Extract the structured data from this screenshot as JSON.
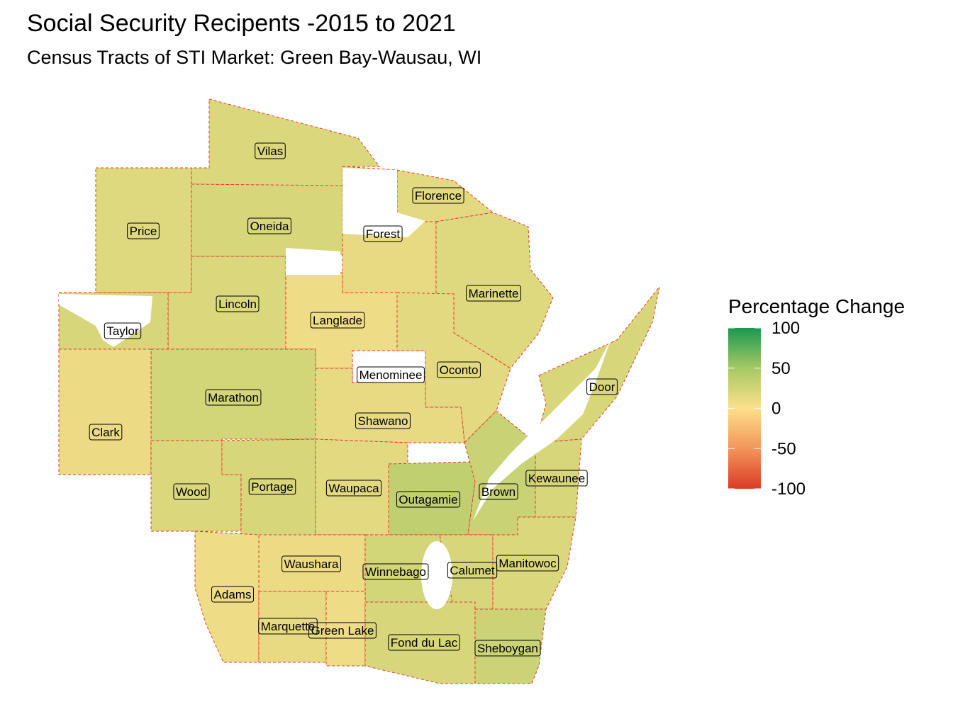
{
  "title": "Social Security Recipents -2015 to 2021",
  "subtitle": "Census Tracts of STI Market: Green Bay-Wausau, WI",
  "legend": {
    "title": "Percentage Change",
    "lim": [
      -100,
      100
    ],
    "ticks": [
      100,
      50,
      0,
      -50,
      -100
    ],
    "colors": [
      "#1a9850",
      "#a6c964",
      "#fde08c",
      "#f2955a",
      "#dc3b26"
    ]
  },
  "counties": [
    {
      "name": "Vilas",
      "value": 20
    },
    {
      "name": "Florence",
      "value": 15
    },
    {
      "name": "Price",
      "value": 18
    },
    {
      "name": "Oneida",
      "value": 22
    },
    {
      "name": "Forest",
      "value": 12
    },
    {
      "name": "Marinette",
      "value": 18
    },
    {
      "name": "Lincoln",
      "value": 20
    },
    {
      "name": "Langlade",
      "value": 8
    },
    {
      "name": "Taylor",
      "value": 22
    },
    {
      "name": "Menominee",
      "value": null
    },
    {
      "name": "Oconto",
      "value": 15
    },
    {
      "name": "Door",
      "value": 22
    },
    {
      "name": "Marathon",
      "value": 25
    },
    {
      "name": "Shawano",
      "value": 12
    },
    {
      "name": "Clark",
      "value": 10
    },
    {
      "name": "Kewaunee",
      "value": 22
    },
    {
      "name": "Wood",
      "value": 20
    },
    {
      "name": "Portage",
      "value": 22
    },
    {
      "name": "Waupaca",
      "value": 15
    },
    {
      "name": "Outagamie",
      "value": 35
    },
    {
      "name": "Brown",
      "value": 30
    },
    {
      "name": "Waushara",
      "value": 10
    },
    {
      "name": "Winnebago",
      "value": 25
    },
    {
      "name": "Calumet",
      "value": 22
    },
    {
      "name": "Manitowoc",
      "value": 20
    },
    {
      "name": "Adams",
      "value": 8
    },
    {
      "name": "Marquette",
      "value": 12
    },
    {
      "name": "Green Lake",
      "value": 8
    },
    {
      "name": "Fond du Lac",
      "value": 22
    },
    {
      "name": "Sheboygan",
      "value": 28
    }
  ]
}
